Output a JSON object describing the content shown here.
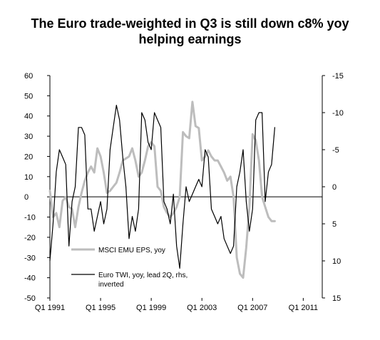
{
  "chart_data": {
    "type": "line",
    "title_lines": [
      "The Euro trade-weighted in Q3 is still down c8% yoy",
      "helping earnings"
    ],
    "x_tick_labels": [
      "Q1 1991",
      "Q1 1995",
      "Q1 1999",
      "Q1 2003",
      "Q1 2007",
      "Q1 2011"
    ],
    "x_start": "Q1 1991",
    "x_end": "Q3 2012",
    "y_left_ticks": [
      60,
      50,
      40,
      30,
      20,
      10,
      0,
      -10,
      -20,
      -30,
      -40,
      -50
    ],
    "y_left_lim": [
      -50,
      60
    ],
    "y_right_ticks": [
      -15,
      -10,
      -5,
      0,
      5,
      10,
      15
    ],
    "y_right_lim": [
      15,
      -15
    ],
    "y_right_inverted": true,
    "grid": false,
    "colors": {
      "eps": "#bdbdbd",
      "twi": "#000000",
      "axis": "#000000"
    },
    "series": [
      {
        "name": "MSCI EMU EPS, yoy",
        "axis": "left",
        "start": "Q1 1991",
        "values": [
          3,
          -10,
          -8,
          -15,
          -2,
          0,
          -5,
          -6,
          -15,
          -5,
          2,
          8,
          12,
          15,
          12,
          24,
          20,
          12,
          2,
          3,
          5,
          7,
          12,
          18,
          19,
          20,
          24,
          18,
          10,
          12,
          18,
          25,
          27,
          25,
          5,
          3,
          -5,
          -8,
          -10,
          -8,
          -5,
          0,
          32,
          30,
          29,
          47,
          35,
          34,
          18,
          20,
          23,
          20,
          18,
          18,
          15,
          12,
          8,
          10,
          0,
          -30,
          -38,
          -40,
          -25,
          -5,
          31,
          28,
          18,
          0,
          -5,
          -10,
          -12,
          -12
        ]
      },
      {
        "name": "Euro TWI, yoy, lead 2Q, rhs, inverted",
        "axis": "right",
        "start": "Q1 1991",
        "values": [
          10,
          5,
          -2,
          -5,
          -4,
          -3,
          8,
          2,
          0,
          -8,
          -8,
          -7,
          3,
          3,
          6,
          4,
          2,
          5,
          3,
          -5,
          -8,
          -11,
          -9,
          -4,
          0,
          7,
          4,
          6,
          3,
          -10,
          -9,
          -6,
          -5,
          -10,
          -9,
          -8,
          2,
          3,
          5,
          1,
          8,
          11,
          5,
          0,
          2,
          1,
          0,
          -1,
          0,
          -5,
          -4,
          3,
          4,
          5,
          4,
          7,
          8,
          9,
          8,
          0,
          -2,
          -5,
          2,
          6,
          3,
          -9,
          -10,
          -10,
          2,
          -2,
          -3,
          -8
        ]
      }
    ],
    "legend": [
      {
        "series": 0,
        "label": "MSCI EMU EPS, yoy"
      },
      {
        "series": 1,
        "label_lines": [
          "Euro TWI, yoy, lead 2Q, rhs,",
          "inverted"
        ]
      }
    ]
  }
}
